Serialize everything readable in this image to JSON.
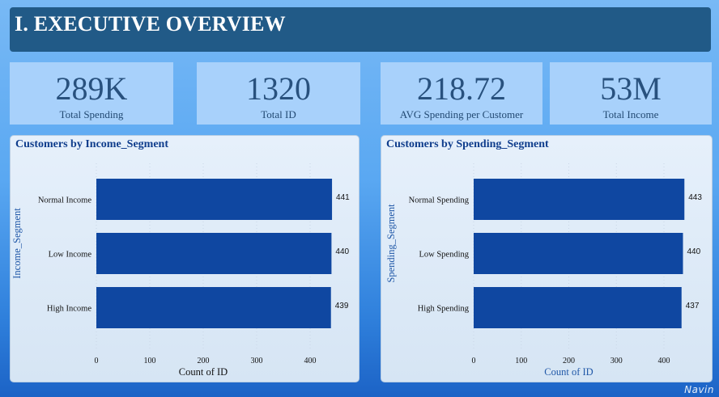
{
  "header": {
    "title": "I. EXECUTIVE OVERVIEW"
  },
  "kpis": [
    {
      "value": "289K",
      "label": "Total Spending"
    },
    {
      "value": "1320",
      "label": "Total ID"
    },
    {
      "value": "218.72",
      "label": "AVG Spending per Customer"
    },
    {
      "value": "53M",
      "label": "Total Income"
    }
  ],
  "panels": [
    {
      "title": "Customers by Income_Segment"
    },
    {
      "title": "Customers by Spending_Segment"
    }
  ],
  "watermark": "Navin",
  "colors": {
    "bar": "#0f47a1",
    "header_bg": "#215a87",
    "kpi_bg": "#a8d1fb",
    "kpi_text": "#28517e"
  },
  "chart_data": [
    {
      "type": "bar",
      "orientation": "horizontal",
      "title": "Customers by Income_Segment",
      "categories": [
        "Normal Income",
        "Low Income",
        "High Income"
      ],
      "values": [
        441,
        440,
        439
      ],
      "xlabel": "Count of ID",
      "ylabel": "Income_Segment",
      "xticks": [
        0,
        100,
        200,
        300,
        400
      ],
      "xlim": [
        0,
        441
      ],
      "grid": true
    },
    {
      "type": "bar",
      "orientation": "horizontal",
      "title": "Customers by Spending_Segment",
      "categories": [
        "Normal Spending",
        "Low Spending",
        "High Spending"
      ],
      "values": [
        443,
        440,
        437
      ],
      "xlabel": "Count of ID",
      "ylabel": "Spending_Segment",
      "xticks": [
        0,
        100,
        200,
        300,
        400
      ],
      "xlim": [
        0,
        443
      ],
      "grid": true
    }
  ]
}
